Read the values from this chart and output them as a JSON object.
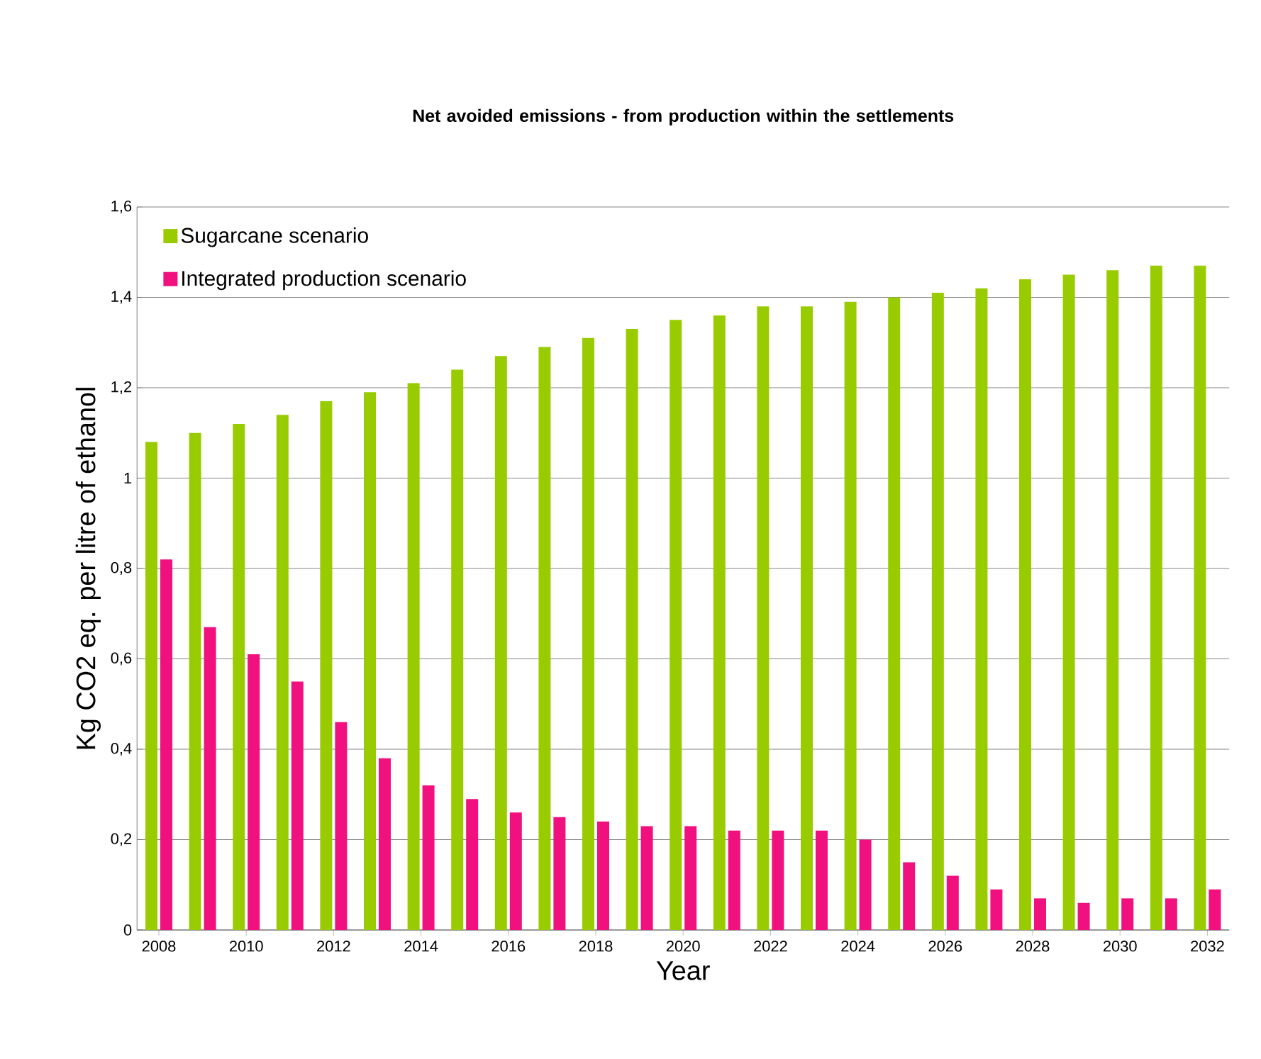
{
  "chart_data": {
    "type": "bar",
    "title": "Net avoided emissions - from production within the settlements",
    "xlabel": "Year",
    "ylabel": "Kg CO2 eq. per litre of ethanol",
    "categories": [
      "2008",
      null,
      "2010",
      null,
      "2012",
      null,
      "2014",
      null,
      "2016",
      null,
      "2018",
      null,
      "2020",
      null,
      "2022",
      null,
      "2024",
      null,
      "2026",
      null,
      "2028",
      null,
      "2030",
      null,
      "2032"
    ],
    "series": [
      {
        "name": "Sugarcane scenario",
        "color": "#99cc00",
        "values": [
          1.08,
          1.1,
          1.12,
          1.14,
          1.17,
          1.19,
          1.21,
          1.24,
          1.27,
          1.29,
          1.31,
          1.33,
          1.35,
          1.36,
          1.38,
          1.38,
          1.39,
          1.4,
          1.41,
          1.42,
          1.44,
          1.45,
          1.46,
          1.47,
          1.47
        ]
      },
      {
        "name": "Integrated production scenario",
        "color": "#f0117f",
        "values": [
          0.82,
          0.67,
          0.61,
          0.55,
          0.46,
          0.38,
          0.32,
          0.29,
          0.26,
          0.25,
          0.24,
          0.23,
          0.23,
          0.22,
          0.22,
          0.22,
          0.2,
          0.15,
          0.12,
          0.09,
          0.07,
          0.06,
          0.07,
          0.07,
          0.09
        ]
      }
    ],
    "ylim": [
      0,
      1.6
    ],
    "yticks": [
      0,
      {
        "value": 0.2,
        "label": "0,2"
      },
      {
        "value": 0.4,
        "label": "0,4"
      },
      {
        "value": 0.6,
        "label": "0,6"
      },
      {
        "value": 0.8,
        "label": "0,8"
      },
      1,
      {
        "value": 1.2,
        "label": "1,2"
      },
      {
        "value": 1.4,
        "label": "1,4"
      },
      {
        "value": 1.6,
        "label": "1,6"
      }
    ],
    "grid": "y",
    "legend": "top left"
  }
}
